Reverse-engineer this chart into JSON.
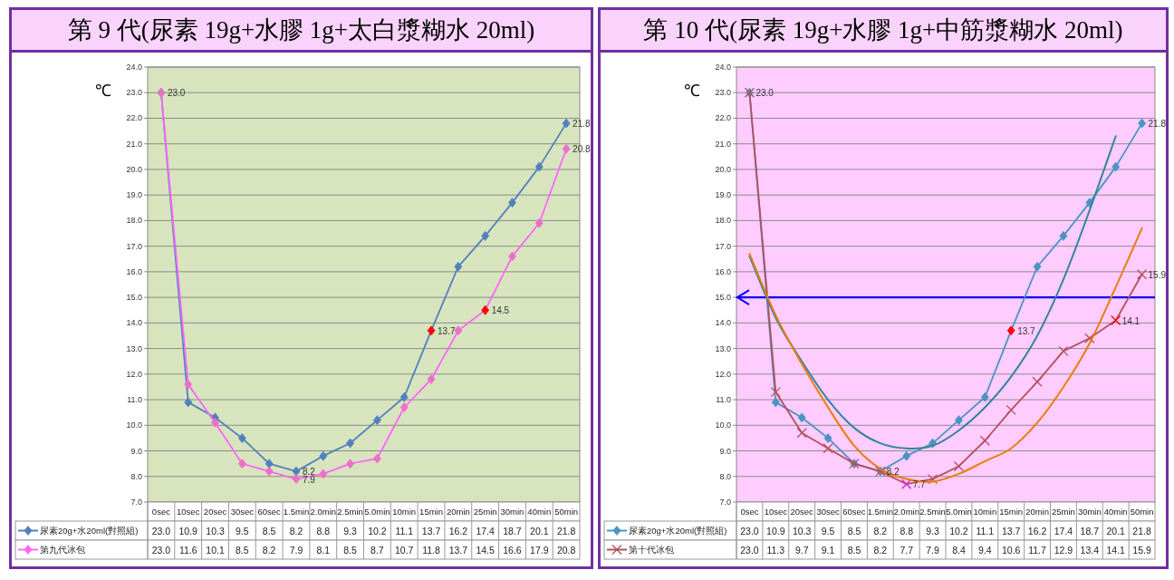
{
  "chart_data": [
    {
      "type": "line",
      "title": "第 9 代(尿素 19g+水膠 1g+太白漿糊水 20ml)",
      "ylabel": "℃",
      "categories": [
        "0sec",
        "10sec",
        "20sec",
        "30sec",
        "60sec",
        "1.5min",
        "2.0min",
        "2.5min",
        "5.0min",
        "10min",
        "15min",
        "20min",
        "25min",
        "30min",
        "40min",
        "50min"
      ],
      "ylim": [
        7,
        24
      ],
      "yticks": [
        {
          "value": 7,
          "label": "7.0"
        },
        {
          "value": 8,
          "label": "8.0"
        },
        {
          "value": 9,
          "label": "9.0"
        },
        {
          "value": 10,
          "label": "10.0"
        },
        {
          "value": 11,
          "label": "11.0"
        },
        {
          "value": 12,
          "label": "12.0"
        },
        {
          "value": 13,
          "label": "13.0"
        },
        {
          "value": 14,
          "label": "14.0"
        },
        {
          "value": 15,
          "label": "15.0"
        },
        {
          "value": 16,
          "label": "16.0"
        },
        {
          "value": 17,
          "label": "17.0"
        },
        {
          "value": 18,
          "label": "18.0"
        },
        {
          "value": 19,
          "label": "19.0"
        },
        {
          "value": 20,
          "label": "20.0"
        },
        {
          "value": 21,
          "label": "21.0"
        },
        {
          "value": 22,
          "label": "22.0"
        },
        {
          "value": 23,
          "label": "23.0"
        },
        {
          "value": 24,
          "label": "24.0"
        }
      ],
      "grid": "y",
      "legend": "bottom",
      "line_style": "solid",
      "series": [
        {
          "name": "尿素20g+水20ml(對照組)",
          "color": "#4f81bd",
          "marker": "diamond",
          "values": [
            23.0,
            10.9,
            10.3,
            9.5,
            8.5,
            8.2,
            8.8,
            9.3,
            10.2,
            11.1,
            13.7,
            16.2,
            17.4,
            18.7,
            20.1,
            21.8
          ],
          "value_labels": [
            "23.0",
            "10.9",
            "10.3",
            "9.5",
            "8.5",
            "8.2",
            "8.8",
            "9.3",
            "10.2",
            "11.1",
            "13.7",
            "16.2",
            "17.4",
            "18.7",
            "20.1",
            "21.8"
          ],
          "colors": [
            "#4f81bd",
            "#4f81bd",
            "#4f81bd",
            "#4f81bd",
            "#4f81bd",
            "#4f81bd",
            "#4f81bd",
            "#4f81bd",
            "#4f81bd",
            "#4f81bd",
            "#ff0000",
            "#4f81bd",
            "#4f81bd",
            "#4f81bd",
            "#4f81bd",
            "#4f81bd"
          ]
        },
        {
          "name": "第九代冰包",
          "color": "#ff66ff",
          "marker": "diamond",
          "values": [
            23.0,
            11.6,
            10.1,
            8.5,
            8.2,
            7.9,
            8.1,
            8.5,
            8.7,
            10.7,
            11.8,
            13.7,
            14.5,
            16.6,
            17.9,
            20.8
          ],
          "value_labels": [
            "23.0",
            "11.6",
            "10.1",
            "8.5",
            "8.2",
            "7.9",
            "8.1",
            "8.5",
            "8.7",
            "10.7",
            "11.8",
            "13.7",
            "14.5",
            "16.6",
            "17.9",
            "20.8"
          ],
          "colors": [
            "#ee6ec8",
            "#ee6ec8",
            "#ee6ec8",
            "#ee6ec8",
            "#ee6ec8",
            "#ee6ec8",
            "#ee6ec8",
            "#ee6ec8",
            "#ee6ec8",
            "#ee6ec8",
            "#ee6ec8",
            "#ee6ec8",
            "#ff0000",
            "#ee6ec8",
            "#ee6ec8",
            "#ee6ec8"
          ]
        }
      ],
      "annotations": [
        {
          "text": "23.0",
          "x": "0sec",
          "y": 23.0
        },
        {
          "text": "21.8",
          "x": "50min",
          "y": 21.8
        },
        {
          "text": "20.8",
          "x": "50min",
          "y": 20.8
        },
        {
          "text": "13.7",
          "x": "15min",
          "y": 13.7
        },
        {
          "text": "14.5",
          "x": "25min",
          "y": 14.5
        },
        {
          "text": "8.2",
          "x": "1.5min",
          "y": 8.2
        },
        {
          "text": "7.9",
          "x": "1.5min",
          "y": 7.9
        }
      ]
    },
    {
      "type": "line",
      "title": "第 10 代(尿素 19g+水膠 1g+中筋漿糊水 20ml)",
      "ylabel": "℃",
      "categories": [
        "0sec",
        "10sec",
        "20sec",
        "30sec",
        "60sec",
        "1.5min",
        "2.0min",
        "2.5min",
        "5.0min",
        "10min",
        "15min",
        "20min",
        "25min",
        "30min",
        "40min",
        "50min"
      ],
      "ylim": [
        7,
        24
      ],
      "yticks": [
        {
          "value": 7,
          "label": "7.0"
        },
        {
          "value": 8,
          "label": "8.0"
        },
        {
          "value": 9,
          "label": "9.0"
        },
        {
          "value": 10,
          "label": "10.0"
        },
        {
          "value": 11,
          "label": "11.0"
        },
        {
          "value": 12,
          "label": "12.0"
        },
        {
          "value": 13,
          "label": "13.0"
        },
        {
          "value": 14,
          "label": "14.0"
        },
        {
          "value": 15,
          "label": "15.0"
        },
        {
          "value": 16,
          "label": "16.0"
        },
        {
          "value": 17,
          "label": "17.0"
        },
        {
          "value": 18,
          "label": "18.0"
        },
        {
          "value": 19,
          "label": "19.0"
        },
        {
          "value": 20,
          "label": "20.0"
        },
        {
          "value": 21,
          "label": "21.0"
        },
        {
          "value": 22,
          "label": "22.0"
        },
        {
          "value": 23,
          "label": "23.0"
        },
        {
          "value": 24,
          "label": "24.0"
        }
      ],
      "grid": "y",
      "legend": "bottom",
      "line_style": "solid",
      "ref_lines": [
        {
          "axis": "y",
          "value": 15,
          "color": "#0000ff"
        }
      ],
      "series": [
        {
          "name": "尿素20g+水20ml(對照組)",
          "color": "#4a93c4",
          "marker": "diamond",
          "values": [
            23.0,
            10.9,
            10.3,
            9.5,
            8.5,
            8.2,
            8.8,
            9.3,
            10.2,
            11.1,
            13.7,
            16.2,
            17.4,
            18.7,
            20.1,
            21.8
          ],
          "value_labels": [
            "23.0",
            "10.9",
            "10.3",
            "9.5",
            "8.5",
            "8.2",
            "8.8",
            "9.3",
            "10.2",
            "11.1",
            "13.7",
            "16.2",
            "17.4",
            "18.7",
            "20.1",
            "21.8"
          ],
          "colors": [
            "#4a93c4",
            "#4a93c4",
            "#4a93c4",
            "#4a93c4",
            "#4a93c4",
            "#4a93c4",
            "#4a93c4",
            "#4a93c4",
            "#4a93c4",
            "#4a93c4",
            "#ff0000",
            "#4a93c4",
            "#4a93c4",
            "#4a93c4",
            "#4a93c4",
            "#4a93c4"
          ]
        },
        {
          "name": "第十代冰包",
          "color": "#b3505c",
          "marker": "cross",
          "values": [
            23.0,
            11.3,
            9.7,
            9.1,
            8.5,
            8.2,
            7.7,
            7.9,
            8.4,
            9.4,
            10.6,
            11.7,
            12.9,
            13.4,
            14.1,
            15.9
          ],
          "value_labels": [
            "23.0",
            "11.3",
            "9.7",
            "9.1",
            "8.5",
            "8.2",
            "7.7",
            "7.9",
            "8.4",
            "9.4",
            "10.6",
            "11.7",
            "12.9",
            "13.4",
            "14.1",
            "15.9"
          ],
          "colors": [
            "#b3505c",
            "#b3505c",
            "#b3505c",
            "#b3505c",
            "#b3505c",
            "#b3505c",
            "#cc22cc",
            "#b3505c",
            "#b3505c",
            "#b3505c",
            "#b3505c",
            "#b3505c",
            "#b3505c",
            "#b3505c",
            "#ff0000",
            "#b3505c"
          ]
        },
        {
          "type": "line",
          "color": "#31859c",
          "marker": "none",
          "x": [
            "0sec",
            "10sec",
            "20sec",
            "30sec",
            "60sec",
            "1.5min",
            "2.0min",
            "2.5min",
            "5.0min",
            "10min",
            "15min",
            "20min",
            "25min",
            "30min",
            "40min",
            "50min"
          ],
          "values": [
            16.6,
            14.2,
            12.5,
            11.0,
            9.9,
            9.3,
            9.1,
            9.2,
            9.8,
            10.7,
            11.9,
            13.5,
            15.7,
            18.4,
            21.3,
            null
          ]
        },
        {
          "type": "line",
          "color": "#e87d0c",
          "marker": "none",
          "x": [
            "0sec",
            "10sec",
            "20sec",
            "30sec",
            "60sec",
            "1.5min",
            "2.0min",
            "2.5min",
            "5.0min",
            "10min",
            "15min",
            "20min",
            "25min",
            "30min",
            "40min",
            "50min"
          ],
          "values": [
            16.7,
            14.3,
            12.4,
            10.7,
            9.2,
            8.3,
            7.9,
            7.8,
            8.1,
            8.6,
            9.1,
            10.1,
            11.5,
            13.2,
            15.4,
            17.7
          ]
        }
      ],
      "annotations": [
        {
          "text": "23.0",
          "x": "0sec",
          "y": 23.0
        },
        {
          "text": "21.8",
          "x": "50min",
          "y": 21.8
        },
        {
          "text": "13.7",
          "x": "15min",
          "y": 13.7
        },
        {
          "text": "8.2",
          "x": "1.5min",
          "y": 8.2
        },
        {
          "text": "7.7",
          "x": "2.0min",
          "y": 7.7
        },
        {
          "text": "14.1",
          "x": "40min",
          "y": 14.1
        },
        {
          "text": "15.9",
          "x": "50min",
          "y": 15.9
        }
      ]
    }
  ]
}
